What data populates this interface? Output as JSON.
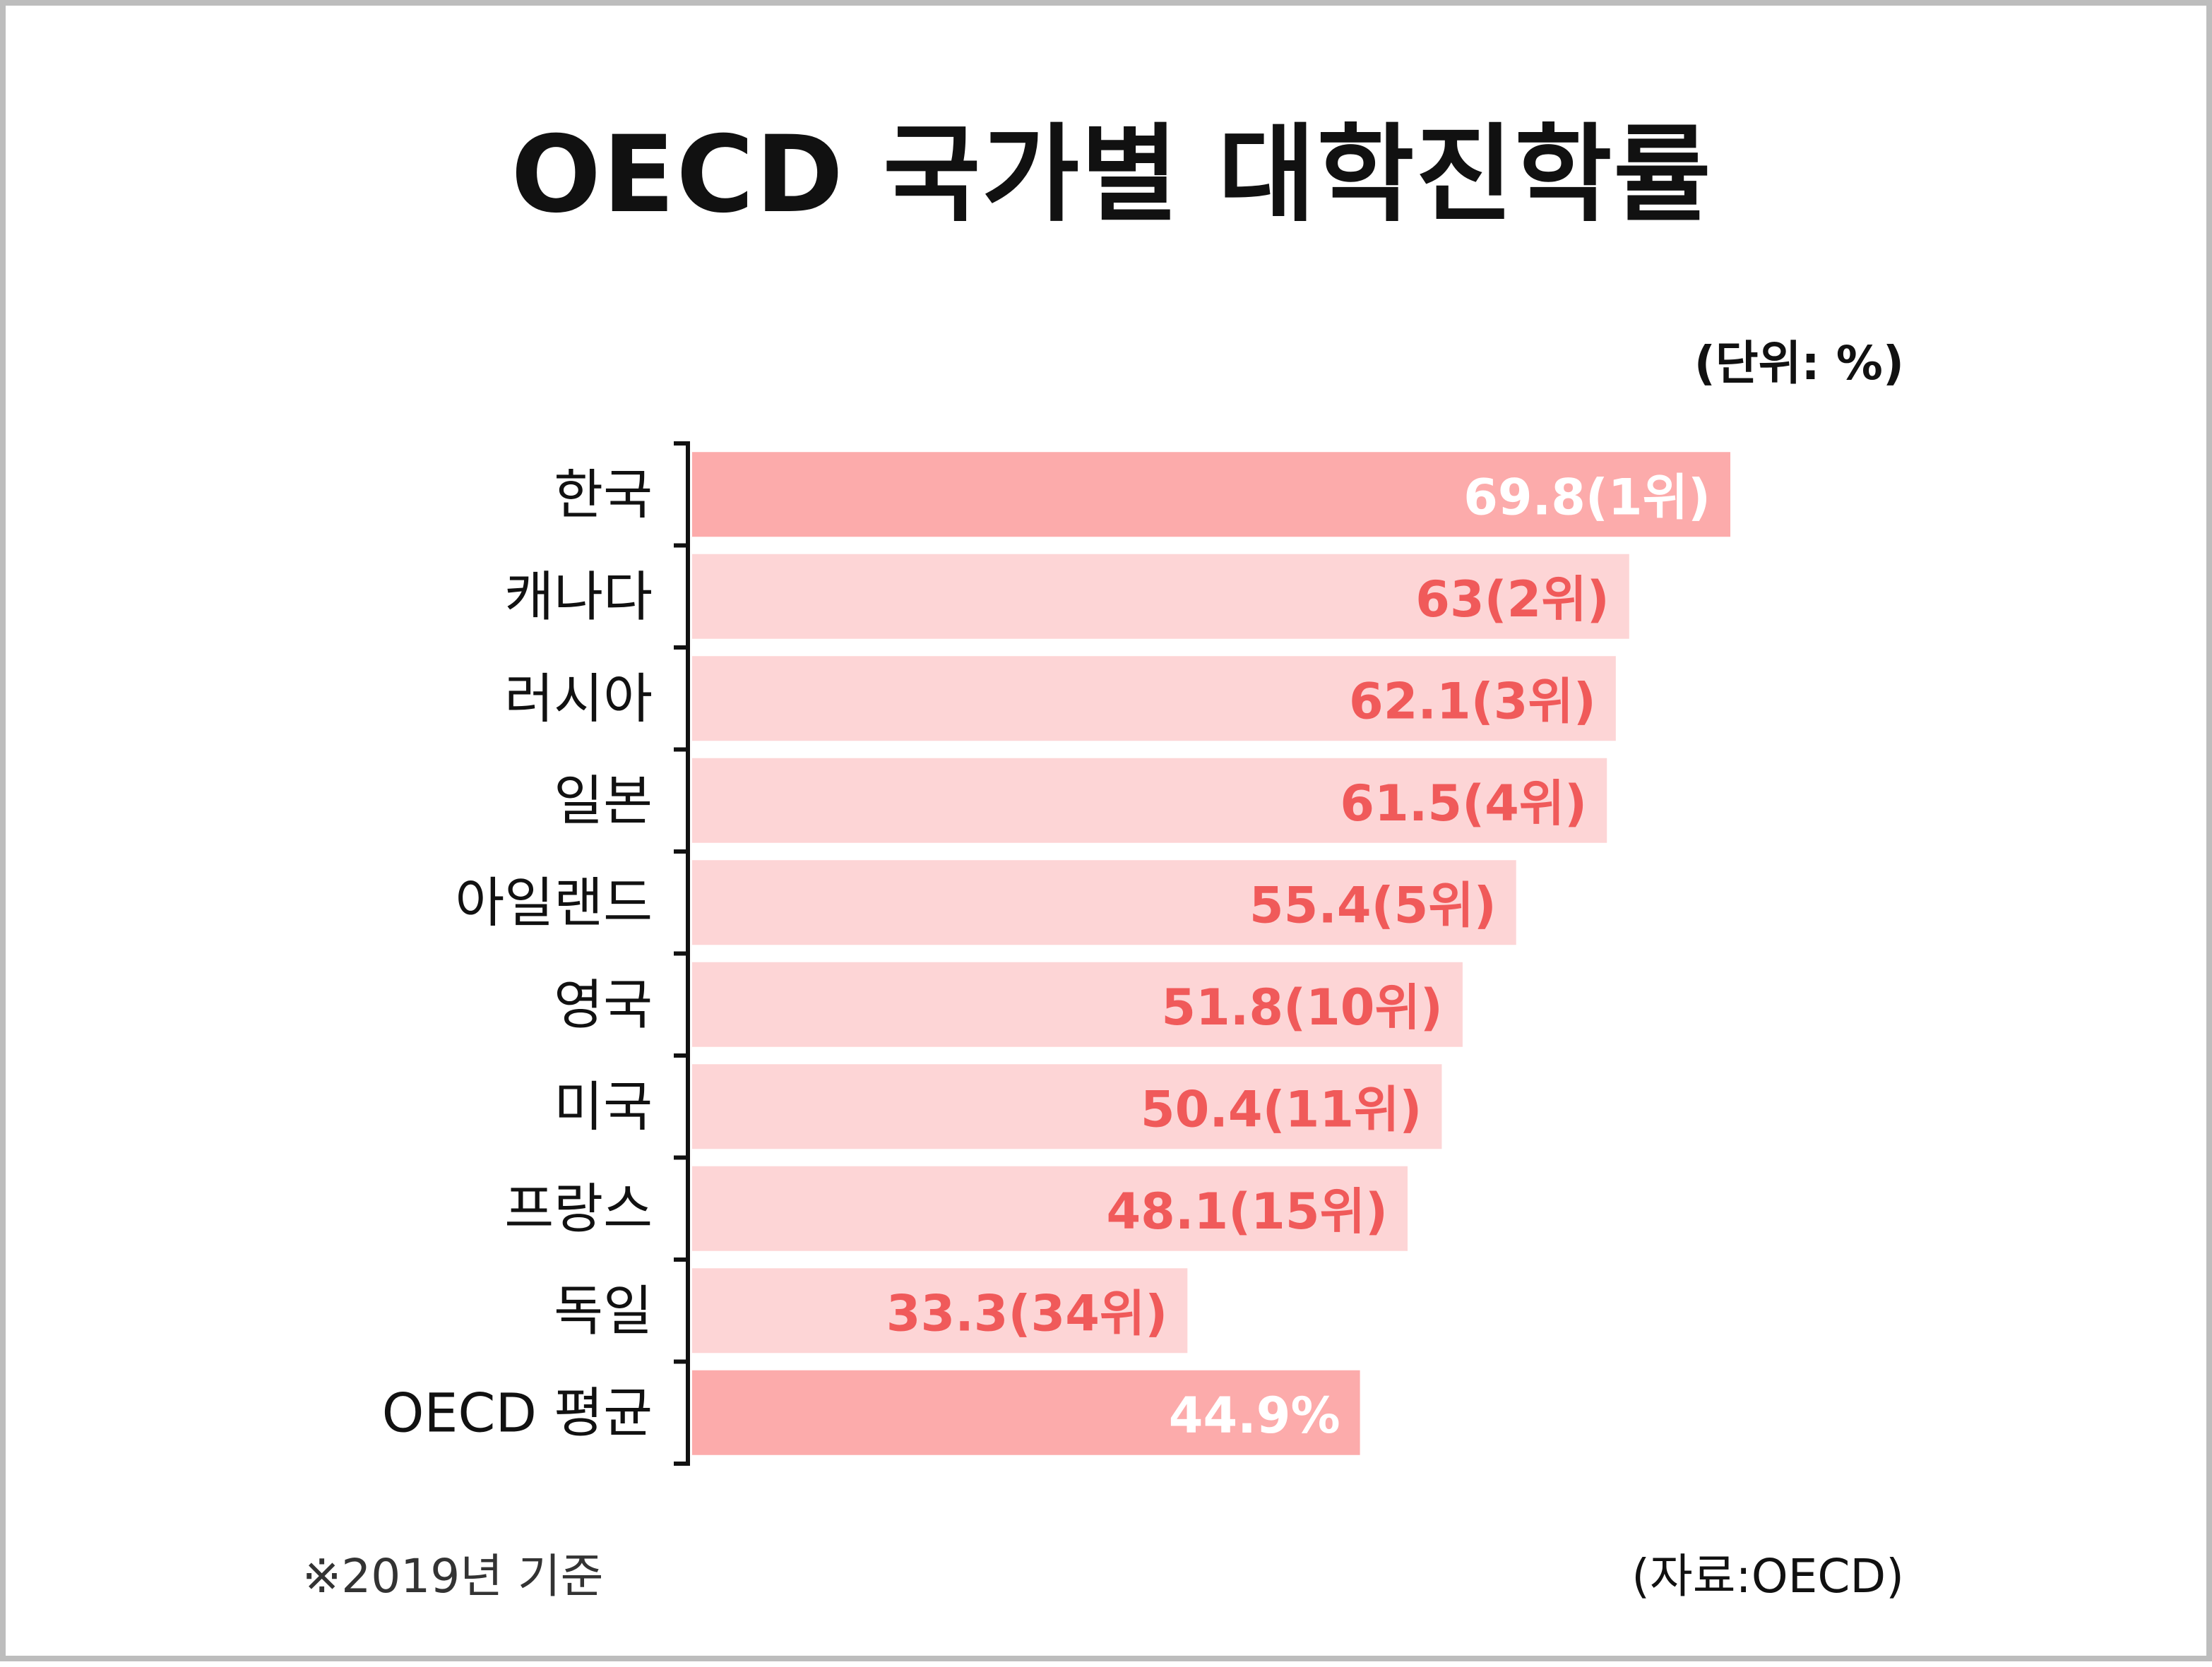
{
  "title": "OECD 국가별 대학진학률",
  "unit_note": "(단위: %)",
  "footnote": "※2019년 기준",
  "source": "(자료:OECD)",
  "colors": {
    "highlight_bar": "#fcabab",
    "normal_bar": "#fdd5d6",
    "highlight_text": "#ffffff",
    "normal_text": "#f05a5a",
    "axis": "#111111"
  },
  "chart_data": {
    "type": "bar",
    "orientation": "horizontal",
    "title": "OECD 국가별 대학진학률",
    "categories": [
      "한국",
      "캐나다",
      "러시아",
      "일본",
      "아일랜드",
      "영국",
      "미국",
      "프랑스",
      "독일",
      "OECD 평균"
    ],
    "values": [
      69.8,
      63,
      62.1,
      61.5,
      55.4,
      51.8,
      50.4,
      48.1,
      33.3,
      44.9
    ],
    "value_labels": [
      "69.8(1위)",
      "63(2위)",
      "62.1(3위)",
      "61.5(4위)",
      "55.4(5위)",
      "51.8(10위)",
      "50.4(11위)",
      "48.1(15위)",
      "33.3(34위)",
      "44.9%"
    ],
    "highlighted": [
      true,
      false,
      false,
      false,
      false,
      false,
      false,
      false,
      false,
      true
    ],
    "xlim": [
      0,
      69.8
    ],
    "grid": false,
    "legend": "none"
  }
}
